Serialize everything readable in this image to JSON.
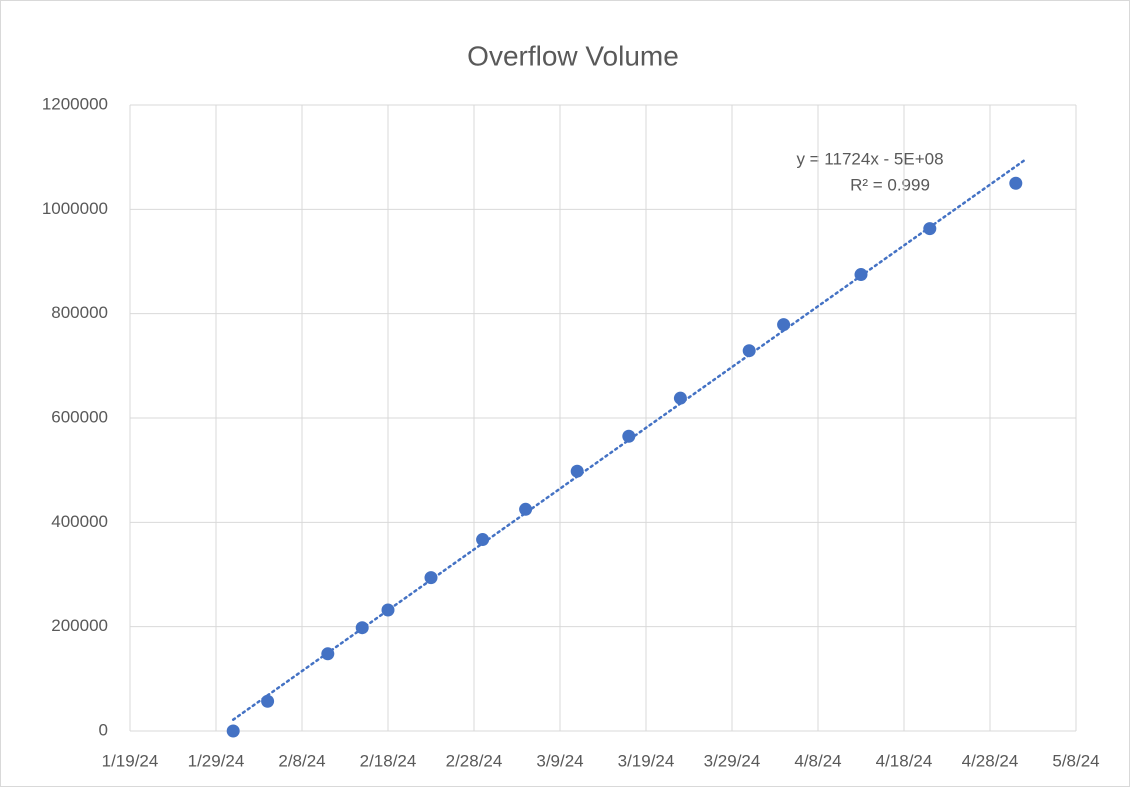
{
  "chart_data": {
    "type": "scatter",
    "title": "Overflow Volume",
    "series": [
      {
        "name": "Overflow Volume",
        "color": "#4472c4",
        "x": [
          "2024-01-31",
          "2024-02-04",
          "2024-02-11",
          "2024-02-15",
          "2024-02-18",
          "2024-02-23",
          "2024-02-29",
          "2024-03-05",
          "2024-03-11",
          "2024-03-17",
          "2024-03-23",
          "2024-03-31",
          "2024-04-04",
          "2024-04-13",
          "2024-04-21",
          "2024-05-01"
        ],
        "values": [
          0,
          57000,
          148000,
          198000,
          232000,
          294000,
          367000,
          425000,
          498000,
          565000,
          638000,
          729000,
          779000,
          875000,
          963000,
          1050000
        ]
      }
    ],
    "annotations": [
      "y = 11724x - 5E+08",
      "R² = 0.999"
    ],
    "trendline": {
      "type": "linear",
      "style": "dotted"
    },
    "xlim": [
      "2024-01-19",
      "2024-05-08"
    ],
    "xticks": [
      {
        "value": "2024-01-19",
        "label": "1/19/24"
      },
      {
        "value": "2024-01-29",
        "label": "1/29/24"
      },
      {
        "value": "2024-02-08",
        "label": "2/8/24"
      },
      {
        "value": "2024-02-18",
        "label": "2/18/24"
      },
      {
        "value": "2024-02-28",
        "label": "2/28/24"
      },
      {
        "value": "2024-03-09",
        "label": "3/9/24"
      },
      {
        "value": "2024-03-19",
        "label": "3/19/24"
      },
      {
        "value": "2024-03-29",
        "label": "3/29/24"
      },
      {
        "value": "2024-04-08",
        "label": "4/8/24"
      },
      {
        "value": "2024-04-18",
        "label": "4/18/24"
      },
      {
        "value": "2024-04-28",
        "label": "4/28/24"
      },
      {
        "value": "2024-05-08",
        "label": "5/8/24"
      }
    ],
    "ylim": [
      0,
      1200000
    ],
    "yticks": [
      0,
      200000,
      400000,
      600000,
      800000,
      1000000,
      1200000
    ],
    "grid": true
  }
}
